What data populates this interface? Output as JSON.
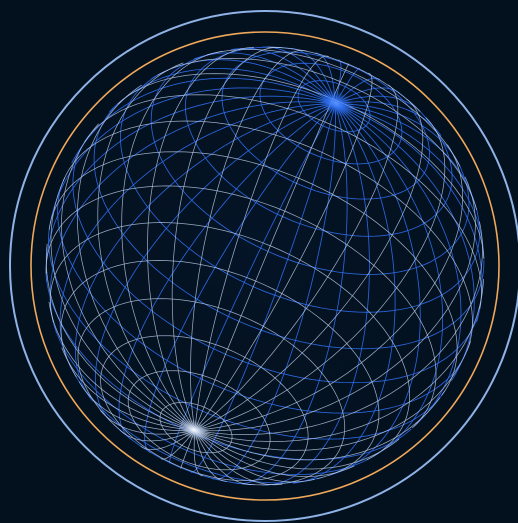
{
  "visual": {
    "background_color": "#03111f",
    "outer_ring_color": "#8fb3e6",
    "inner_ring_color": "#f0a85a",
    "grid_color_a": "#2f6ff2",
    "grid_color_b": "#b9cbe8",
    "pole_glow_color_a": "#2f6ff2",
    "pole_glow_color_b": "#d8e6ff",
    "grid_lines_per_set": 36,
    "grid_sets": 2,
    "rings": 2
  }
}
